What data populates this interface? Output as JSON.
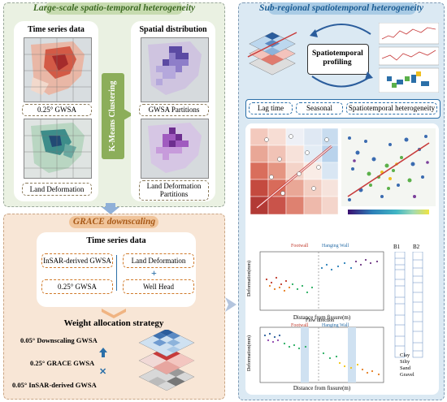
{
  "panel1": {
    "title": "Large-scale spatio-temporal heterogeneity",
    "left_heading": "Time series data",
    "right_heading": "Spatial distribution",
    "gwsa_label": "0.25° GWSA",
    "land_label": "Land Deformation",
    "kmeans_label": "K-Means Clustering",
    "gwsa_partitions": "GWSA Partitions",
    "land_partitions": "Land Deformation Partitions"
  },
  "panel2": {
    "title": "GRACE downscaling",
    "heading": "Time series data",
    "box_insar": "InSAR-derived GWSA",
    "box_land": "Land Deformation",
    "box_gwsa": "0.25° GWSA",
    "box_well": "Well Head",
    "weight_title": "Weight allocation strategy",
    "layer1": "0.05° Downscaling GWSA",
    "layer2": "0.25° GRACE GWSA",
    "layer3": "0.05° InSAR-derived GWSA"
  },
  "panel3": {
    "title": "Sub-regional spatiotemporal heterogeneity",
    "profiling": "Spatiotemporal profiling",
    "tag1": "Lag time",
    "tag2": "Seasonal",
    "tag3": "Spatiotemporal heterogeneity",
    "chart1_ylabel": "Deformation(mm)",
    "chart1_xlabel": "Distance from fissure(m)",
    "chart2_ylabel": "Deformation(mm)",
    "chart2_xlabel": "Distance from fissure(m)",
    "footwall": "Footwall",
    "hanging": "Hanging Wall",
    "flow_direction": "Flow direction",
    "borehole_b1": "B1",
    "borehole_b2": "B2",
    "legend_clay": "Clay",
    "legend_silty": "Silty",
    "legend_sand": "Sand",
    "legend_gravel": "Gravel"
  },
  "colors": {
    "green_panel": "#eaf1e2",
    "orange_panel": "#f8e6d6",
    "blue_panel": "#dbe9f3",
    "kmeans": "#8cae5a",
    "title_green": "#5f8a3a",
    "title_orange": "#c7702c",
    "title_blue": "#2b6fa8"
  }
}
